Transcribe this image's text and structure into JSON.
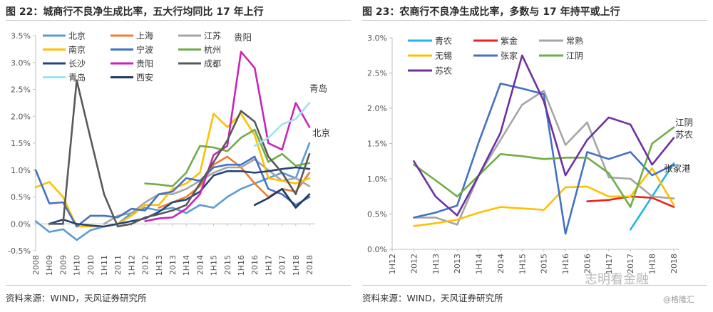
{
  "chart_data": [
    {
      "type": "line",
      "title": "图 22：城商行不良净生成比率，五大行均同比 17 年上行",
      "source": "资料来源：WIND，天风证券研究所",
      "x": [
        "2008",
        "1H09",
        "2009",
        "1H10",
        "2010",
        "1H11",
        "2011",
        "1H12",
        "2012",
        "1H13",
        "2013",
        "1H14",
        "2014",
        "1H15",
        "2015",
        "1H16",
        "2016",
        "1H17",
        "2017",
        "1H18",
        "2018"
      ],
      "ylim": [
        -0.005,
        0.035
      ],
      "yticks": [
        "-0.5%",
        "0.0%",
        "0.5%",
        "1.0%",
        "1.5%",
        "2.0%",
        "2.5%",
        "3.0%",
        "3.5%"
      ],
      "legend_position": "top-left",
      "grid": false,
      "series": [
        {
          "name": "北京",
          "color": "#5b9bd5",
          "values": [
            0.0005,
            -0.0015,
            -0.001,
            -0.003,
            -0.0012,
            -0.0005,
            0.0,
            0.002,
            0.003,
            0.0025,
            0.003,
            0.002,
            0.0035,
            0.003,
            0.005,
            0.0065,
            0.0075,
            0.0085,
            0.0095,
            0.0085,
            0.015
          ]
        },
        {
          "name": "上海",
          "color": "#ed7d31",
          "values": [
            null,
            null,
            null,
            null,
            null,
            null,
            null,
            null,
            null,
            0.003,
            0.004,
            0.005,
            0.007,
            0.011,
            0.0125,
            0.0105,
            0.0075,
            0.005,
            0.0065,
            0.006,
            0.0095
          ]
        },
        {
          "name": "江苏",
          "color": "#a5a5a5",
          "values": [
            null,
            null,
            null,
            null,
            null,
            0.0,
            0.0015,
            0.002,
            0.004,
            0.0055,
            0.0055,
            0.0065,
            0.008,
            0.0095,
            0.0105,
            0.0105,
            0.012,
            0.01,
            0.008,
            0.0085,
            0.007
          ]
        },
        {
          "name": "南京",
          "color": "#ffc000",
          "values": [
            0.0068,
            0.0078,
            0.005,
            -0.0005,
            -0.0005,
            -0.0005,
            0.0,
            0.0015,
            0.0035,
            0.0035,
            0.0065,
            0.0075,
            0.0095,
            0.0205,
            0.018,
            0.0205,
            0.0165,
            0.0085,
            0.008,
            0.0075,
            0.0085
          ]
        },
        {
          "name": "宁波",
          "color": "#4472c4",
          "values": [
            0.01,
            0.0038,
            0.004,
            -0.0005,
            0.0015,
            0.0015,
            0.0012,
            0.0028,
            0.0025,
            0.0055,
            0.006,
            0.0085,
            0.008,
            0.0105,
            0.011,
            0.011,
            0.0125,
            0.0065,
            0.0055,
            0.0035,
            0.005
          ]
        },
        {
          "name": "杭州",
          "color": "#70ad47",
          "values": [
            null,
            null,
            null,
            null,
            null,
            null,
            null,
            null,
            0.0075,
            0.0073,
            0.007,
            0.0095,
            0.0145,
            0.0142,
            0.0135,
            0.016,
            0.0175,
            0.0115,
            0.013,
            0.0108,
            0.0113
          ]
        },
        {
          "name": "长沙",
          "color": "#264478",
          "values": [
            null,
            0.0,
            0.0008,
            0.0,
            -0.0003,
            -0.0005,
            0.0,
            0.0005,
            0.001,
            0.0022,
            0.004,
            0.0045,
            0.006,
            0.009,
            0.0098,
            0.0098,
            0.0095,
            0.0098,
            0.0102,
            0.0105,
            0.0102
          ]
        },
        {
          "name": "贵阳",
          "color": "#c825b8",
          "values": [
            null,
            null,
            null,
            null,
            null,
            null,
            null,
            null,
            0.0005,
            0.001,
            0.0012,
            0.0028,
            0.0055,
            0.0128,
            0.0145,
            0.032,
            0.029,
            0.015,
            0.0138,
            0.0225,
            0.018
          ]
        },
        {
          "name": "成都",
          "color": "#595959",
          "values": [
            null,
            0.0,
            0.0,
            0.0267,
            0.016,
            0.0055,
            -0.0005,
            0.0,
            0.0012,
            0.0018,
            0.0025,
            0.0035,
            0.0075,
            0.0115,
            0.0155,
            0.021,
            0.019,
            0.0125,
            0.0095,
            0.0055,
            0.013
          ]
        },
        {
          "name": "青岛",
          "color": "#9fe3ec",
          "values": [
            null,
            null,
            null,
            null,
            null,
            null,
            null,
            null,
            null,
            null,
            null,
            null,
            null,
            null,
            null,
            null,
            0.0145,
            0.016,
            0.0185,
            0.0195,
            0.0225
          ]
        },
        {
          "name": "西安",
          "color": "#203864",
          "values": [
            null,
            null,
            null,
            null,
            null,
            null,
            null,
            null,
            null,
            null,
            null,
            null,
            null,
            null,
            null,
            null,
            0.0035,
            0.0048,
            0.0065,
            0.003,
            0.0055
          ]
        }
      ],
      "annotations": [
        {
          "text": "贵阳",
          "x": "1H16",
          "y": 0.0325
        },
        {
          "text": "青岛",
          "x": "2018",
          "y": 0.0225
        },
        {
          "text": "北京",
          "x": "2018",
          "y": 0.015
        }
      ]
    },
    {
      "type": "line",
      "title": "图 23：农商行不良净生成比率，多数与 17 年持平或上行",
      "source": "资料来源：WIND，天风证券研究所",
      "x": [
        "1H12",
        "2012",
        "1H13",
        "2013",
        "1H14",
        "2014",
        "1H15",
        "2015",
        "1H16",
        "2016",
        "1H17",
        "2017",
        "1H18",
        "2018"
      ],
      "ylim": [
        0.0,
        0.03
      ],
      "yticks": [
        "0.0%",
        "0.5%",
        "1.0%",
        "1.5%",
        "2.0%",
        "2.5%",
        "3.0%"
      ],
      "legend_position": "top-left",
      "grid": false,
      "series": [
        {
          "name": "青农",
          "color": "#1fb6e8",
          "values": [
            null,
            null,
            null,
            null,
            null,
            null,
            null,
            null,
            null,
            null,
            null,
            0.0028,
            0.0075,
            0.0122
          ]
        },
        {
          "name": "紫金",
          "color": "#e8221f",
          "values": [
            null,
            null,
            null,
            null,
            null,
            null,
            null,
            null,
            null,
            0.0068,
            0.007,
            0.0075,
            0.0073,
            0.006
          ]
        },
        {
          "name": "常熟",
          "color": "#a5a5a5",
          "values": [
            null,
            0.0045,
            0.0045,
            0.0035,
            0.0105,
            0.0155,
            0.0205,
            0.0225,
            0.0148,
            0.018,
            0.0102,
            0.01,
            0.0075,
            0.0072
          ]
        },
        {
          "name": "无锡",
          "color": "#ffc000",
          "values": [
            null,
            0.0033,
            0.0037,
            0.0042,
            0.0052,
            0.006,
            0.0058,
            0.0056,
            0.0088,
            0.0089,
            0.0075,
            0.0075,
            0.0115,
            0.0063
          ]
        },
        {
          "name": "张家",
          "color": "#4472c4",
          "values": [
            null,
            0.0045,
            0.0052,
            0.0062,
            0.0152,
            0.0235,
            0.0228,
            0.022,
            0.0022,
            0.0138,
            0.0128,
            0.0138,
            0.0105,
            0.012
          ]
        },
        {
          "name": "江阴",
          "color": "#70ad47",
          "values": [
            null,
            0.012,
            0.0098,
            0.0075,
            0.0105,
            0.0135,
            0.0132,
            0.0128,
            0.013,
            0.013,
            0.0108,
            0.006,
            0.015,
            0.0173
          ]
        },
        {
          "name": "苏农",
          "color": "#7030a0",
          "values": [
            null,
            0.0125,
            0.0075,
            0.0048,
            0.0105,
            0.0165,
            0.0275,
            0.021,
            0.0105,
            0.0155,
            0.0187,
            0.0177,
            0.012,
            0.0158
          ]
        }
      ],
      "annotations": [
        {
          "text": "江阴",
          "x": "2018",
          "y": 0.0173
        },
        {
          "text": "苏农",
          "x": "2018",
          "y": 0.0158
        },
        {
          "text": "张家港",
          "x": "2018",
          "y": 0.0122
        }
      ]
    }
  ],
  "watermark": "志明看金融",
  "watermark2": "@格隆汇"
}
